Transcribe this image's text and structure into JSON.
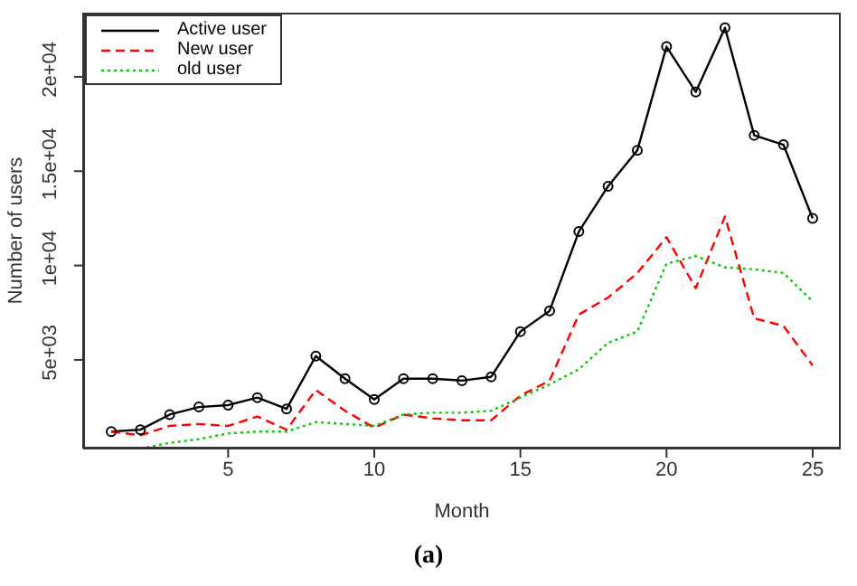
{
  "chart_data": {
    "type": "line",
    "xlabel": "Month",
    "ylabel": "Number of users",
    "annotations": [
      "(a)"
    ],
    "x": [
      1,
      2,
      3,
      4,
      5,
      6,
      7,
      8,
      9,
      10,
      11,
      12,
      13,
      14,
      15,
      16,
      17,
      18,
      19,
      20,
      21,
      22,
      23,
      24,
      25
    ],
    "series": [
      {
        "name": "Active user",
        "color": "#000000",
        "line_style": "solid",
        "marker": "circle",
        "values": [
          1200,
          1300,
          2100,
          2500,
          2600,
          3000,
          2400,
          5200,
          4000,
          2900,
          4000,
          4000,
          3900,
          4100,
          6500,
          7600,
          11800,
          14200,
          16100,
          21600,
          19200,
          22600,
          16900,
          16400,
          12500
        ]
      },
      {
        "name": "New user",
        "color": "#ff0000",
        "line_style": "dashed",
        "marker": "none",
        "values": [
          1200,
          1000,
          1500,
          1600,
          1500,
          2000,
          1300,
          3400,
          2300,
          1400,
          2100,
          1900,
          1800,
          1800,
          3100,
          3900,
          7400,
          8300,
          9600,
          11500,
          8800,
          12600,
          7200,
          6800,
          4700
        ]
      },
      {
        "name": "old user",
        "color": "#00cc00",
        "line_style": "dotted",
        "marker": "none",
        "values": [
          null,
          300,
          600,
          800,
          1100,
          1200,
          1200,
          1700,
          1600,
          1500,
          2100,
          2200,
          2200,
          2300,
          3000,
          3700,
          4500,
          5900,
          6500,
          10100,
          10500,
          9900,
          9800,
          9600,
          8100
        ]
      }
    ],
    "xlim": [
      0.04,
      25.96
    ],
    "xticks": [
      5,
      10,
      15,
      20,
      25
    ],
    "ylim": [
      300,
      23400
    ],
    "yticks": [
      {
        "value": 5000,
        "label": "5e+03"
      },
      {
        "value": 10000,
        "label": "1e+04"
      },
      {
        "value": 15000,
        "label": "1.5e+04"
      },
      {
        "value": 20000,
        "label": "2e+04"
      }
    ],
    "grid": false,
    "legend": "top left"
  }
}
